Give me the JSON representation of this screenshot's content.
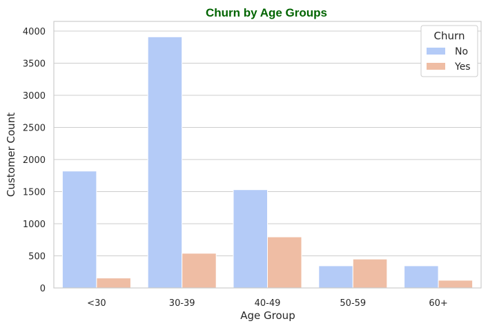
{
  "chart_data": {
    "type": "bar",
    "title": "Churn by Age Groups",
    "title_color": "#006400",
    "xlabel": "Age Group",
    "ylabel": "Customer Count",
    "categories": [
      "<30",
      "30-39",
      "40-49",
      "50-59",
      "60+"
    ],
    "series": [
      {
        "name": "No",
        "color": "#b4cbf7",
        "values": [
          1820,
          3910,
          1530,
          345,
          345
        ]
      },
      {
        "name": "Yes",
        "color": "#efbda4",
        "values": [
          155,
          540,
          795,
          450,
          120
        ]
      }
    ],
    "ylim": [
      0,
      4150
    ],
    "yticks": [
      "0",
      "500",
      "1000",
      "1500",
      "2000",
      "2500",
      "3000",
      "3500",
      "4000"
    ],
    "grid": "horizontal",
    "legend": {
      "title": "Churn",
      "position": "top-right"
    }
  }
}
